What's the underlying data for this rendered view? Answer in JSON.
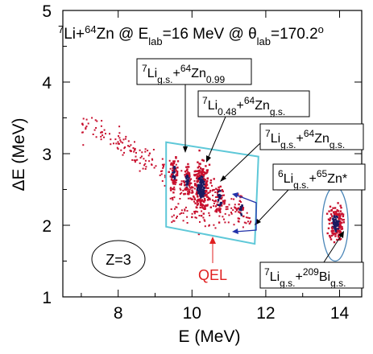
{
  "chart_data": {
    "type": "scatter",
    "title": "",
    "xlabel": "E (MeV)",
    "ylabel": "ΔE (MeV)",
    "xlim": [
      6.5,
      14.6
    ],
    "ylim": [
      1,
      5
    ],
    "xticks": [
      8,
      10,
      12,
      14
    ],
    "yticks": [
      1,
      2,
      3,
      4,
      5
    ],
    "grid": false,
    "reaction": {
      "part1": "Li+",
      "part2": "Zn @ E",
      "part3": "=16 MeV @ θ",
      "part4": "=170.2",
      "mass_li": "7",
      "mass_zn": "64",
      "sub_lab_e": "lab",
      "sub_lab_theta": "lab",
      "degree": "o"
    },
    "annotations": {
      "box1": {
        "pre": "7",
        "li": "Li",
        "li_sub": "g.s.",
        "plus": "+",
        "post": "64",
        "zn": "Zn",
        "zn_sub": "0.99"
      },
      "box2": {
        "pre": "7",
        "li": "Li",
        "li_sub": "0.48",
        "plus": "+",
        "post": "64",
        "zn": "Zn",
        "zn_sub": "g.s."
      },
      "box3": {
        "pre": "7",
        "li": "Li",
        "li_sub": "g.s.",
        "plus": "+",
        "post": "64",
        "zn": "Zn",
        "zn_sub": "g.s."
      },
      "box4": {
        "pre": "6",
        "li": "Li",
        "li_sub": "g.s.",
        "plus": "+",
        "post": "65",
        "zn": "Zn*",
        "zn_sub": ""
      },
      "box5": {
        "pre": "7",
        "li": "Li",
        "li_sub": "g.s.",
        "plus": "+",
        "post": "209",
        "zn": "Bi",
        "zn_sub": "g.s."
      },
      "qel": "QEL",
      "z_label": "Z=3"
    },
    "series": [
      {
        "clusters": [
          {
            "x": 9.52,
            "y": 2.72,
            "sx": 0.05,
            "sy": 0.1,
            "n": 70
          },
          {
            "x": 9.88,
            "y": 2.62,
            "sx": 0.05,
            "sy": 0.1,
            "n": 70
          },
          {
            "x": 10.25,
            "y": 2.52,
            "sx": 0.11,
            "sy": 0.16,
            "n": 260
          },
          {
            "x": 10.75,
            "y": 2.38,
            "sx": 0.06,
            "sy": 0.12,
            "n": 40
          },
          {
            "x": 11.32,
            "y": 2.22,
            "sx": 0.05,
            "sy": 0.1,
            "n": 25
          },
          {
            "x": 13.9,
            "y": 2.03,
            "sx": 0.09,
            "sy": 0.12,
            "n": 160
          }
        ]
      }
    ],
    "gates": {
      "qel_polygon": [
        [
          9.3,
          3.16
        ],
        [
          11.8,
          2.96
        ],
        [
          11.7,
          1.74
        ],
        [
          9.3,
          1.98
        ]
      ],
      "bi_ellipse": {
        "cx": 13.88,
        "cy": 2.02,
        "rx": 0.35,
        "ry": 0.52
      }
    },
    "colors": {
      "gate": "#5ec8d8",
      "ellipse": "#4a86b8",
      "arrow_blue": "#2233aa",
      "qel": "#e02020",
      "points_red": "#c8102e",
      "points_dense": "#1a1a60"
    }
  }
}
